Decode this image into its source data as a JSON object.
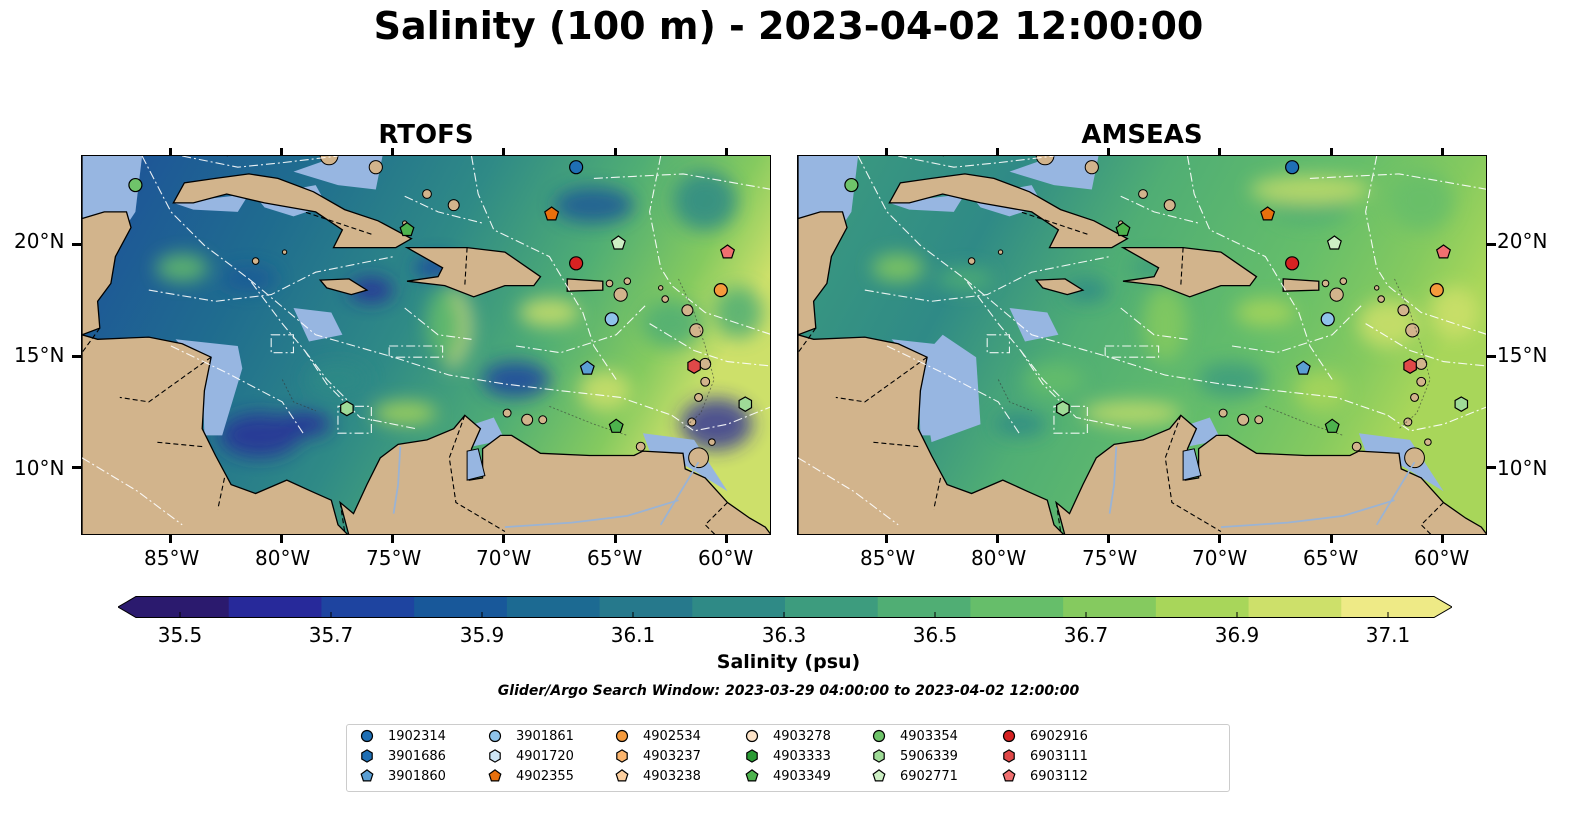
{
  "title": "Salinity (100 m) - 2023-04-02 12:00:00",
  "panels": [
    {
      "title": "RTOFS",
      "variant": "rtofs"
    },
    {
      "title": "AMSEAS",
      "variant": "amseas"
    }
  ],
  "map": {
    "lon_labels": [
      "85°W",
      "80°W",
      "75°W",
      "70°W",
      "65°W",
      "60°W"
    ],
    "lat_labels": [
      "20°N",
      "15°N",
      "10°N"
    ],
    "lon_range": [
      -89,
      -58
    ],
    "lat_range": [
      7,
      24
    ],
    "land_color": "#d2b48c",
    "shallow_color": "#97b6e1"
  },
  "colorbar": {
    "label": "Salinity (psu)",
    "ticks": [
      "35.5",
      "35.7",
      "35.9",
      "36.1",
      "36.3",
      "36.5",
      "36.7",
      "36.9",
      "37.1"
    ],
    "colors": [
      "#2b1a6e",
      "#27299a",
      "#1e44a0",
      "#18589a",
      "#1c6a92",
      "#26798c",
      "#2f8a86",
      "#3d9c7e",
      "#50ae74",
      "#66be6a",
      "#85ca5f",
      "#a8d65a",
      "#cde06a",
      "#eeea86"
    ]
  },
  "search_window": "Glider/Argo Search Window: 2023-03-29 04:00:00 to 2023-04-02 12:00:00",
  "legend": [
    {
      "id": "1902314",
      "marker": "circle",
      "color": "#1f6fb4"
    },
    {
      "id": "3901686",
      "marker": "hexagon",
      "color": "#1f6fb4"
    },
    {
      "id": "3901860",
      "marker": "pentagon",
      "color": "#5b9fd4"
    },
    {
      "id": "3901861",
      "marker": "circle",
      "color": "#8fc3ea"
    },
    {
      "id": "4901720",
      "marker": "hexagon",
      "color": "#cfe6f6"
    },
    {
      "id": "4902355",
      "marker": "pentagon",
      "color": "#e8700d"
    },
    {
      "id": "4902534",
      "marker": "circle",
      "color": "#f59a3c"
    },
    {
      "id": "4903237",
      "marker": "hexagon",
      "color": "#fbb56e"
    },
    {
      "id": "4903238",
      "marker": "pentagon",
      "color": "#fdd0a0"
    },
    {
      "id": "4903278",
      "marker": "circle",
      "color": "#fde3c8"
    },
    {
      "id": "4903333",
      "marker": "hexagon",
      "color": "#2a9a33"
    },
    {
      "id": "4903349",
      "marker": "pentagon",
      "color": "#4db34d"
    },
    {
      "id": "4903354",
      "marker": "circle",
      "color": "#6fc46a"
    },
    {
      "id": "5906339",
      "marker": "hexagon",
      "color": "#9fdb97"
    },
    {
      "id": "6902771",
      "marker": "pentagon",
      "color": "#cdefc4"
    },
    {
      "id": "6902916",
      "marker": "circle",
      "color": "#d62222"
    },
    {
      "id": "6903111",
      "marker": "hexagon",
      "color": "#e04848"
    },
    {
      "id": "6903112",
      "marker": "pentagon",
      "color": "#f07070"
    }
  ],
  "floats": [
    {
      "id": "4903354",
      "lon": -86.6,
      "lat": 22.7
    },
    {
      "id": "1902314",
      "lon": -66.8,
      "lat": 23.5
    },
    {
      "id": "4903349",
      "lon": -74.4,
      "lat": 20.7
    },
    {
      "id": "4902355",
      "lon": -67.9,
      "lat": 21.4
    },
    {
      "id": "6902771",
      "lon": -64.9,
      "lat": 20.1
    },
    {
      "id": "6903112",
      "lon": -60.0,
      "lat": 19.7
    },
    {
      "id": "6902916",
      "lon": -66.8,
      "lat": 19.2
    },
    {
      "id": "4902534",
      "lon": -60.3,
      "lat": 18.0
    },
    {
      "id": "3901861",
      "lon": -65.2,
      "lat": 16.7
    },
    {
      "id": "3901860",
      "lon": -66.3,
      "lat": 14.5
    },
    {
      "id": "6903111",
      "lon": -61.5,
      "lat": 14.6
    },
    {
      "id": "5906339",
      "lon": -77.1,
      "lat": 12.7
    },
    {
      "id": "4903349",
      "lon": -65.0,
      "lat": 11.9
    },
    {
      "id": "5906339",
      "lon": -59.2,
      "lat": 12.9
    }
  ]
}
